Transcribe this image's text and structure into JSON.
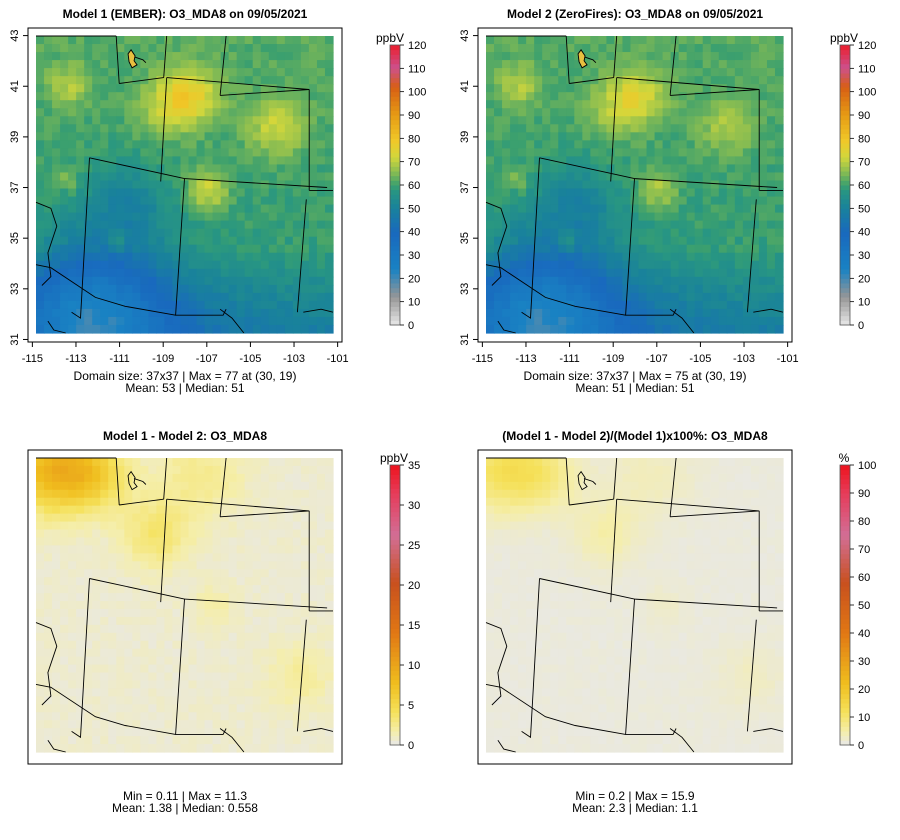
{
  "figure": {
    "variable": "O3_MDA8",
    "date": "09/05/2021"
  },
  "chart_data": [
    {
      "type": "heatmap",
      "title": "Model 1 (EMBER): O3_MDA8 on 09/05/2021",
      "grid": "37x37",
      "x_ticks": [
        "-115",
        "-113",
        "-111",
        "-109",
        "-107",
        "-105",
        "-103",
        "-101"
      ],
      "y_ticks": [
        "31",
        "33",
        "35",
        "37",
        "39",
        "41",
        "43"
      ],
      "xlim": [
        -115.2,
        -100.8
      ],
      "ylim": [
        30.9,
        43.3
      ],
      "colorbar": {
        "unit": "ppbV",
        "min": 0,
        "max": 120,
        "ticks": [
          "0",
          "10",
          "20",
          "30",
          "40",
          "50",
          "60",
          "70",
          "80",
          "90",
          "100",
          "110",
          "120"
        ]
      },
      "stats_line1": "Domain size: 37x37 | Max = 77 at (30, 19)",
      "stats_line2": "Mean: 53 |  Median: 51",
      "max": 77,
      "mean": 53,
      "median": 51
    },
    {
      "type": "heatmap",
      "title": "Model 2 (ZeroFires): O3_MDA8 on 09/05/2021",
      "grid": "37x37",
      "x_ticks": [
        "-115",
        "-113",
        "-111",
        "-109",
        "-107",
        "-105",
        "-103",
        "-101"
      ],
      "y_ticks": [
        "31",
        "33",
        "35",
        "37",
        "39",
        "41",
        "43"
      ],
      "xlim": [
        -115.2,
        -100.8
      ],
      "ylim": [
        30.9,
        43.3
      ],
      "colorbar": {
        "unit": "ppbV",
        "min": 0,
        "max": 120,
        "ticks": [
          "0",
          "10",
          "20",
          "30",
          "40",
          "50",
          "60",
          "70",
          "80",
          "90",
          "100",
          "110",
          "120"
        ]
      },
      "stats_line1": "Domain size: 37x37 | Max = 75 at (30, 19)",
      "stats_line2": "Mean: 51 |  Median: 51",
      "max": 75,
      "mean": 51,
      "median": 51
    },
    {
      "type": "heatmap",
      "title": "Model 1 - Model 2: O3_MDA8",
      "colorbar": {
        "unit": "ppbV",
        "min": 0,
        "max": 35,
        "ticks": [
          "0",
          "5",
          "10",
          "15",
          "20",
          "25",
          "30",
          "35"
        ]
      },
      "stats_line1": "Min = 0.11 | Max = 11.3",
      "stats_line2": "Mean: 1.38 |  Median: 0.558",
      "min": 0.11,
      "max": 11.3,
      "mean": 1.38,
      "median": 0.558
    },
    {
      "type": "heatmap",
      "title": "(Model 1 - Model 2)/(Model 1)x100%: O3_MDA8",
      "colorbar": {
        "unit": "%",
        "min": 0,
        "max": 100,
        "ticks": [
          "0",
          "10",
          "20",
          "30",
          "40",
          "50",
          "60",
          "70",
          "80",
          "90",
          "100"
        ]
      },
      "stats_line1": "Min = 0.2 | Max = 15.9",
      "stats_line2": "Mean: 2.3 |  Median: 1.1",
      "min": 0.2,
      "max": 15.9,
      "mean": 2.3,
      "median": 1.1
    }
  ]
}
